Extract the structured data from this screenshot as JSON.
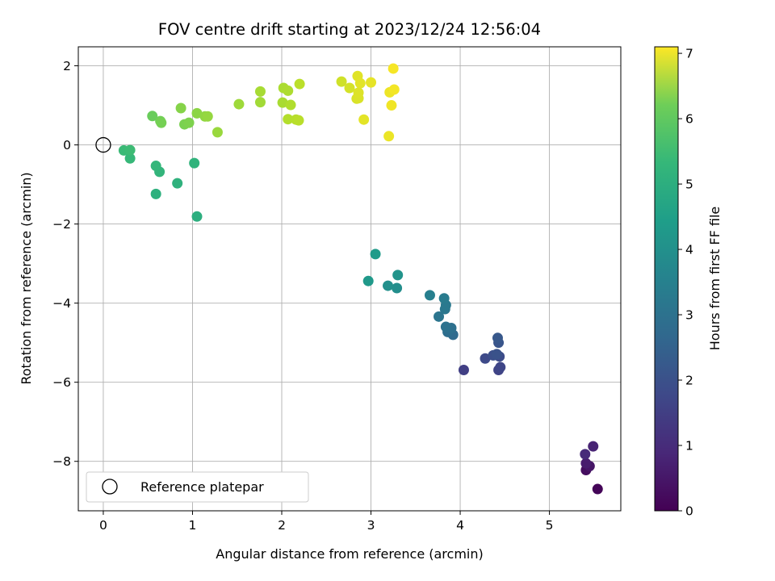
{
  "chart_data": {
    "type": "scatter",
    "title": "FOV centre drift starting at 2023/12/24 12:56:04",
    "xlabel": "Angular distance from reference (arcmin)",
    "ylabel": "Rotation from reference (arcmin)",
    "xlim": [
      -0.28,
      5.8
    ],
    "ylim": [
      -9.25,
      2.48
    ],
    "x_ticks": [
      0,
      1,
      2,
      3,
      4,
      5
    ],
    "x_tick_labels": [
      "0",
      "1",
      "2",
      "3",
      "4",
      "5"
    ],
    "y_ticks": [
      2,
      0,
      -2,
      -4,
      -6,
      -8
    ],
    "y_tick_labels": [
      "2",
      "0",
      "−2",
      "−4",
      "−6",
      "−8"
    ],
    "grid": true,
    "legend": {
      "placement": "lower-left",
      "entries": [
        "Reference platepar"
      ]
    },
    "reference_point": {
      "x": 0,
      "y": 0
    },
    "colorbar": {
      "label": "Hours from first FF file",
      "range": [
        0,
        7.1
      ],
      "ticks": [
        0,
        1,
        2,
        3,
        4,
        5,
        6,
        7
      ],
      "tick_labels": [
        "0",
        "1",
        "2",
        "3",
        "4",
        "5",
        "6",
        "7"
      ],
      "colormap": "viridis"
    },
    "points": [
      {
        "x": 5.54,
        "y": -8.7,
        "h": 0.08
      },
      {
        "x": 5.41,
        "y": -8.22,
        "h": 0.25
      },
      {
        "x": 5.45,
        "y": -8.12,
        "h": 0.4
      },
      {
        "x": 5.41,
        "y": -8.05,
        "h": 0.55
      },
      {
        "x": 5.49,
        "y": -7.62,
        "h": 0.7
      },
      {
        "x": 5.4,
        "y": -7.82,
        "h": 0.85
      },
      {
        "x": 4.04,
        "y": -5.69,
        "h": 1.35
      },
      {
        "x": 4.43,
        "y": -5.69,
        "h": 1.45
      },
      {
        "x": 4.45,
        "y": -5.62,
        "h": 1.5
      },
      {
        "x": 4.28,
        "y": -5.4,
        "h": 1.6
      },
      {
        "x": 4.44,
        "y": -5.35,
        "h": 1.65
      },
      {
        "x": 4.37,
        "y": -5.32,
        "h": 1.72
      },
      {
        "x": 4.41,
        "y": -5.29,
        "h": 1.8
      },
      {
        "x": 4.43,
        "y": -5.0,
        "h": 1.88
      },
      {
        "x": 4.42,
        "y": -4.88,
        "h": 1.95
      },
      {
        "x": 3.92,
        "y": -4.8,
        "h": 2.45
      },
      {
        "x": 3.86,
        "y": -4.73,
        "h": 2.55
      },
      {
        "x": 3.9,
        "y": -4.63,
        "h": 2.6
      },
      {
        "x": 3.84,
        "y": -4.6,
        "h": 2.68
      },
      {
        "x": 3.76,
        "y": -4.34,
        "h": 2.75
      },
      {
        "x": 3.83,
        "y": -4.15,
        "h": 2.82
      },
      {
        "x": 3.84,
        "y": -4.05,
        "h": 2.88
      },
      {
        "x": 3.82,
        "y": -3.88,
        "h": 2.95
      },
      {
        "x": 3.66,
        "y": -3.8,
        "h": 3.05
      },
      {
        "x": 3.29,
        "y": -3.62,
        "h": 3.5
      },
      {
        "x": 3.19,
        "y": -3.56,
        "h": 3.55
      },
      {
        "x": 3.3,
        "y": -3.29,
        "h": 3.65
      },
      {
        "x": 2.97,
        "y": -3.44,
        "h": 3.8
      },
      {
        "x": 3.05,
        "y": -2.76,
        "h": 3.85
      },
      {
        "x": 1.05,
        "y": -1.81,
        "h": 4.45
      },
      {
        "x": 0.59,
        "y": -1.24,
        "h": 4.5
      },
      {
        "x": 0.83,
        "y": -0.97,
        "h": 4.55
      },
      {
        "x": 1.02,
        "y": -0.46,
        "h": 4.6
      },
      {
        "x": 0.63,
        "y": -0.68,
        "h": 4.65
      },
      {
        "x": 0.59,
        "y": -0.53,
        "h": 4.7
      },
      {
        "x": 0.3,
        "y": -0.34,
        "h": 4.75
      },
      {
        "x": 0.23,
        "y": -0.14,
        "h": 4.8
      },
      {
        "x": 0.3,
        "y": -0.13,
        "h": 4.85
      },
      {
        "x": 0.55,
        "y": 0.73,
        "h": 5.45
      },
      {
        "x": 0.64,
        "y": 0.6,
        "h": 5.55
      },
      {
        "x": 0.65,
        "y": 0.56,
        "h": 5.6
      },
      {
        "x": 0.91,
        "y": 0.52,
        "h": 5.65
      },
      {
        "x": 0.96,
        "y": 0.56,
        "h": 5.7
      },
      {
        "x": 0.87,
        "y": 0.93,
        "h": 5.78
      },
      {
        "x": 1.05,
        "y": 0.8,
        "h": 5.85
      },
      {
        "x": 1.14,
        "y": 0.72,
        "h": 5.9
      },
      {
        "x": 1.17,
        "y": 0.72,
        "h": 5.95
      },
      {
        "x": 1.28,
        "y": 0.32,
        "h": 6.0
      },
      {
        "x": 1.52,
        "y": 1.03,
        "h": 6.05
      },
      {
        "x": 1.76,
        "y": 1.08,
        "h": 6.1
      },
      {
        "x": 1.76,
        "y": 1.35,
        "h": 6.15
      },
      {
        "x": 2.01,
        "y": 1.07,
        "h": 6.18
      },
      {
        "x": 2.02,
        "y": 1.44,
        "h": 6.2
      },
      {
        "x": 2.07,
        "y": 1.37,
        "h": 6.23
      },
      {
        "x": 2.1,
        "y": 1.01,
        "h": 6.26
      },
      {
        "x": 2.07,
        "y": 0.65,
        "h": 6.29
      },
      {
        "x": 2.16,
        "y": 0.64,
        "h": 6.32
      },
      {
        "x": 2.19,
        "y": 0.62,
        "h": 6.35
      },
      {
        "x": 2.2,
        "y": 1.54,
        "h": 6.38
      },
      {
        "x": 2.67,
        "y": 1.6,
        "h": 6.6
      },
      {
        "x": 2.76,
        "y": 1.44,
        "h": 6.65
      },
      {
        "x": 2.84,
        "y": 1.17,
        "h": 6.7
      },
      {
        "x": 2.86,
        "y": 1.18,
        "h": 6.72
      },
      {
        "x": 2.86,
        "y": 1.32,
        "h": 6.75
      },
      {
        "x": 2.85,
        "y": 1.74,
        "h": 6.78
      },
      {
        "x": 2.88,
        "y": 1.56,
        "h": 6.8
      },
      {
        "x": 2.92,
        "y": 0.64,
        "h": 6.82
      },
      {
        "x": 3.0,
        "y": 1.58,
        "h": 6.85
      },
      {
        "x": 3.2,
        "y": 0.22,
        "h": 6.9
      },
      {
        "x": 3.21,
        "y": 1.33,
        "h": 6.93
      },
      {
        "x": 3.23,
        "y": 1.0,
        "h": 6.96
      },
      {
        "x": 3.26,
        "y": 1.4,
        "h": 6.99
      },
      {
        "x": 3.25,
        "y": 1.93,
        "h": 7.02
      }
    ]
  }
}
